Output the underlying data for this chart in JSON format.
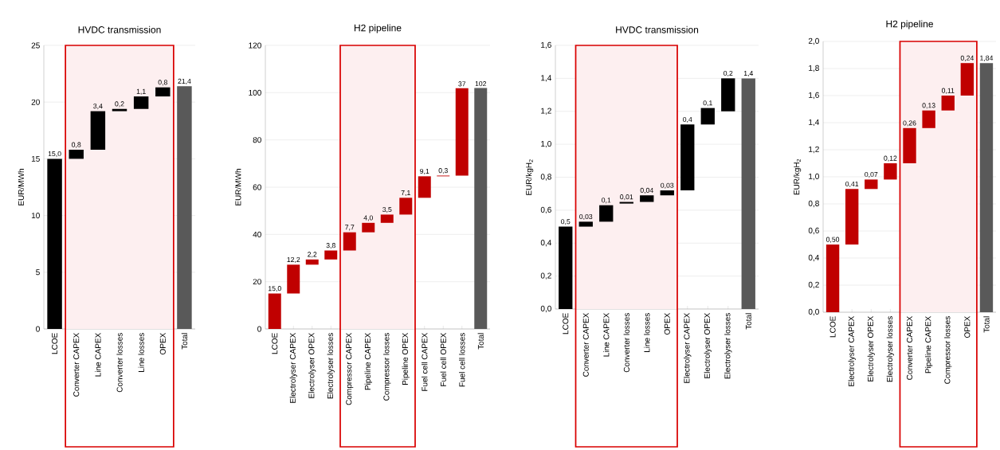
{
  "chart_data": [
    {
      "type": "bar",
      "title": "HVDC transmission",
      "ylabel": "EUR/MWh",
      "categories": [
        "LCOE",
        "Converter CAPEX",
        "Line CAPEX",
        "Converter losses",
        "Line losses",
        "OPEX",
        "Total"
      ],
      "base": [
        0,
        15.0,
        15.8,
        19.2,
        19.4,
        20.5,
        0
      ],
      "values": [
        15.0,
        0.8,
        3.4,
        0.2,
        1.1,
        0.8,
        21.4
      ],
      "colors": [
        "#000000",
        "#000000",
        "#000000",
        "#000000",
        "#000000",
        "#000000",
        "#595959"
      ],
      "value_labels": [
        "15,0",
        "0,8",
        "3,4",
        "0,2",
        "1,1",
        "0,8",
        "21,4"
      ],
      "ylim": [
        0,
        25
      ],
      "yticks": [
        0,
        5,
        10,
        15,
        20,
        25
      ],
      "grid": "y",
      "bands": [
        {
          "axis": "x",
          "from": "Converter CAPEX",
          "to": "OPEX",
          "color": "#fdeff0"
        }
      ]
    },
    {
      "type": "bar",
      "title": "H2 pipeline",
      "ylabel": "EUR/MWh",
      "categories": [
        "LCOE",
        "Electrolyser CAPEX",
        "Electrolyser OPEX",
        "Electrolyser losses",
        "Compressor CAPEX",
        "Pipeline CAPEX",
        "Compressor losses",
        "Pipeline OPEX",
        "Fuel cell CAPEX",
        "Fuel cell OPEX",
        "Fuel cell losses",
        "Total"
      ],
      "base": [
        0,
        15.0,
        27.2,
        29.4,
        33.2,
        40.9,
        44.9,
        48.4,
        55.5,
        64.6,
        64.9,
        0
      ],
      "values": [
        15.0,
        12.2,
        2.2,
        3.8,
        7.7,
        4.0,
        3.5,
        7.1,
        9.1,
        0.3,
        37,
        102
      ],
      "colors": [
        "#c00000",
        "#c00000",
        "#c00000",
        "#c00000",
        "#c00000",
        "#c00000",
        "#c00000",
        "#c00000",
        "#c00000",
        "#c00000",
        "#c00000",
        "#595959"
      ],
      "value_labels": [
        "15,0",
        "12,2",
        "2,2",
        "3,8",
        "7,7",
        "4,0",
        "3,5",
        "7,1",
        "9,1",
        "0,3",
        "37",
        "102"
      ],
      "ylim": [
        0,
        120
      ],
      "yticks": [
        0,
        20,
        40,
        60,
        80,
        100,
        120
      ],
      "grid": "y",
      "bands": [
        {
          "axis": "x",
          "from": "Compressor CAPEX",
          "to": "Pipeline OPEX",
          "color": "#fdeff0"
        }
      ]
    },
    {
      "type": "bar",
      "title": "HVDC transmission",
      "ylabel": "EUR/kgH$_{2}$",
      "categories": [
        "LCOE",
        "Converter CAPEX",
        "Line CAPEX",
        "Converter losses",
        "Line losses",
        "OPEX",
        "Electrolyser CAPEX",
        "Electrolyser OPEX",
        "Electrolyser losses",
        "Total"
      ],
      "base": [
        0,
        0.5,
        0.53,
        0.64,
        0.65,
        0.69,
        0.72,
        1.12,
        1.2,
        0
      ],
      "values": [
        0.5,
        0.03,
        0.1,
        0.01,
        0.04,
        0.03,
        0.4,
        0.1,
        0.2,
        1.4
      ],
      "colors": [
        "#000000",
        "#000000",
        "#000000",
        "#000000",
        "#000000",
        "#000000",
        "#000000",
        "#000000",
        "#000000",
        "#595959"
      ],
      "value_labels": [
        "0,5",
        "0,03",
        "0,1",
        "0,01",
        "0,04",
        "0,03",
        "0,4",
        "0,1",
        "0,2",
        "1,4"
      ],
      "ylim": [
        0,
        1.6
      ],
      "yticks": [
        {
          "value": 0,
          "label": "0,0"
        },
        {
          "value": 0.2,
          "label": "0,2"
        },
        {
          "value": 0.4,
          "label": "0,4"
        },
        {
          "value": 0.6,
          "label": "0,6"
        },
        {
          "value": 0.8,
          "label": "0,8"
        },
        {
          "value": 1.0,
          "label": "1,0"
        },
        {
          "value": 1.2,
          "label": "1,2"
        },
        {
          "value": 1.4,
          "label": "1,4"
        },
        {
          "value": 1.6,
          "label": "1,6"
        }
      ],
      "grid": "y",
      "bands": [
        {
          "axis": "x",
          "from": "Converter CAPEX",
          "to": "OPEX",
          "color": "#fdeff0"
        }
      ]
    },
    {
      "type": "bar",
      "title": "H2 pipeline",
      "ylabel": "EUR/kgH$_{2}$",
      "categories": [
        "LCOE",
        "Electrolyser CAPEX",
        "Electrolyser OPEX",
        "Electrolyser losses",
        "Converter CAPEX",
        "Pipeline CAPEX",
        "Compressor losses",
        "OPEX",
        "Total"
      ],
      "base": [
        0,
        0.5,
        0.91,
        0.98,
        1.1,
        1.36,
        1.49,
        1.6,
        0
      ],
      "values": [
        0.5,
        0.41,
        0.07,
        0.12,
        0.26,
        0.13,
        0.11,
        0.24,
        1.84
      ],
      "colors": [
        "#c00000",
        "#c00000",
        "#c00000",
        "#c00000",
        "#c00000",
        "#c00000",
        "#c00000",
        "#c00000",
        "#595959"
      ],
      "value_labels": [
        "0,50",
        "0,41",
        "0,07",
        "0,12",
        "0,26",
        "0,13",
        "0,11",
        "0,24",
        "1,84"
      ],
      "ylim": [
        0,
        2.0
      ],
      "yticks": [
        {
          "value": 0,
          "label": "0,0"
        },
        {
          "value": 0.2,
          "label": "0,2"
        },
        {
          "value": 0.4,
          "label": "0,4"
        },
        {
          "value": 0.6,
          "label": "0,6"
        },
        {
          "value": 0.8,
          "label": "0,8"
        },
        {
          "value": 1.0,
          "label": "1,0"
        },
        {
          "value": 1.2,
          "label": "1,2"
        },
        {
          "value": 1.4,
          "label": "1,4"
        },
        {
          "value": 1.6,
          "label": "1,6"
        },
        {
          "value": 1.8,
          "label": "1,8"
        },
        {
          "value": 2.0,
          "label": "2,0"
        }
      ],
      "grid": "y",
      "bands": [
        {
          "axis": "x",
          "from": "Converter CAPEX",
          "to": "OPEX",
          "color": "#fdeff0"
        }
      ]
    }
  ]
}
